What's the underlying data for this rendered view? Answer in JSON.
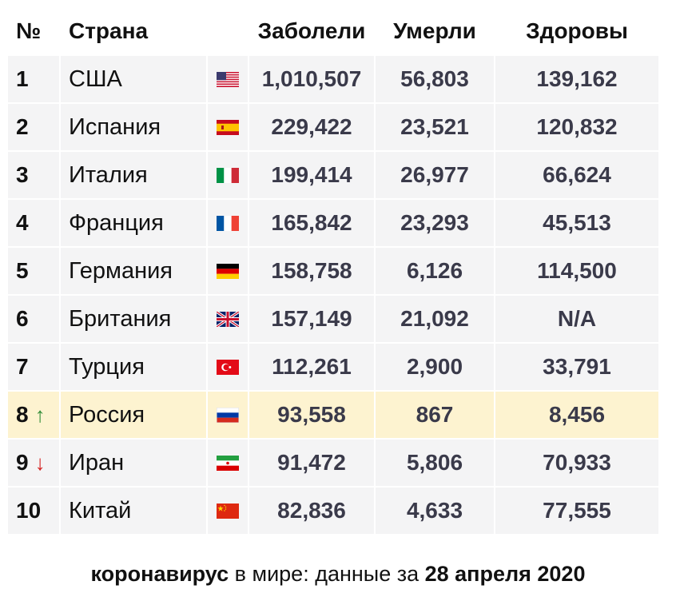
{
  "headers": {
    "num": "№",
    "country": "Страна",
    "cases": "Заболели",
    "deaths": "Умерли",
    "recovered": "Здоровы"
  },
  "rows": [
    {
      "num": "1",
      "country": "США",
      "flag": "us-flag-icon",
      "cases": "1,010,507",
      "deaths": "56,803",
      "recovered": "139,162"
    },
    {
      "num": "2",
      "country": "Испания",
      "flag": "es-flag-icon",
      "cases": "229,422",
      "deaths": "23,521",
      "recovered": "120,832"
    },
    {
      "num": "3",
      "country": "Италия",
      "flag": "it-flag-icon",
      "cases": "199,414",
      "deaths": "26,977",
      "recovered": "66,624"
    },
    {
      "num": "4",
      "country": "Франция",
      "flag": "fr-flag-icon",
      "cases": "165,842",
      "deaths": "23,293",
      "recovered": "45,513"
    },
    {
      "num": "5",
      "country": "Германия",
      "flag": "de-flag-icon",
      "cases": "158,758",
      "deaths": "6,126",
      "recovered": "114,500"
    },
    {
      "num": "6",
      "country": "Британия",
      "flag": "gb-flag-icon",
      "cases": "157,149",
      "deaths": "21,092",
      "recovered": "N/A"
    },
    {
      "num": "7",
      "country": "Турция",
      "flag": "tr-flag-icon",
      "cases": "112,261",
      "deaths": "2,900",
      "recovered": "33,791"
    },
    {
      "num": "8",
      "arrow": "↑",
      "country": "Россия",
      "flag": "ru-flag-icon",
      "cases": "93,558",
      "deaths": "867",
      "recovered": "8,456",
      "highlight": true
    },
    {
      "num": "9",
      "arrow": "↓",
      "country": "Иран",
      "flag": "ir-flag-icon",
      "cases": "91,472",
      "deaths": "5,806",
      "recovered": "70,933"
    },
    {
      "num": "10",
      "country": "Китай",
      "flag": "cn-flag-icon",
      "cases": "82,836",
      "deaths": "4,633",
      "recovered": "77,555"
    }
  ],
  "colors": {
    "row_bg": "#f4f4f5",
    "highlight_bg": "#fdf3d0",
    "arrow_up": "#2e8b35",
    "arrow_down": "#d42020",
    "value_text": "#3a3a4a"
  },
  "caption": {
    "bold1": "коронавирус",
    "middle": " в мире: данные за ",
    "bold2": "28 апреля 2020"
  }
}
